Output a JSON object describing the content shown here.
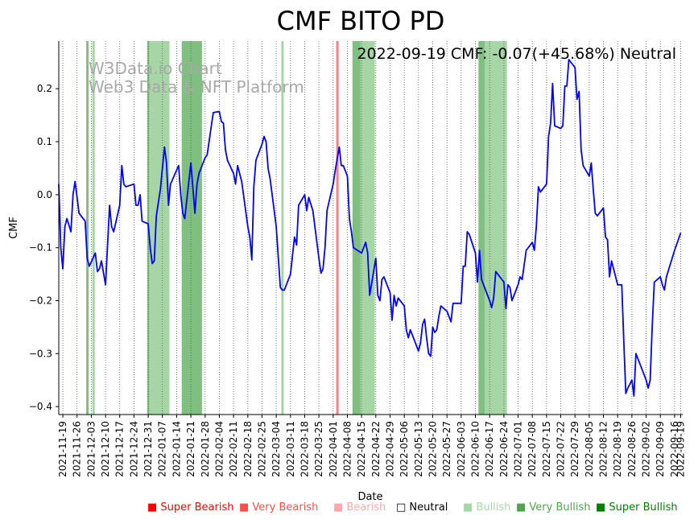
{
  "chart_data": {
    "type": "line",
    "title": "CMF BITO PD",
    "annotation": "2022-09-19 CMF: -0.07(+45.68%) Neutral",
    "watermark": [
      "W3Data.io Chart",
      "Web3 Data & NFT Platform"
    ],
    "xlabel": "Date",
    "ylabel": "CMF",
    "ylim": [
      -0.415,
      0.29
    ],
    "yticks": [
      0.2,
      0.1,
      0.0,
      -0.1,
      -0.2,
      -0.3,
      -0.4
    ],
    "ytick_labels": [
      "0.2",
      "0.1",
      "0.0",
      "−0.1",
      "−0.2",
      "−0.3",
      "−0.4"
    ],
    "x_start": "2021-11-17",
    "x_end": "2022-09-20",
    "xticks": [
      "2021-11-19",
      "2021-11-26",
      "2021-12-03",
      "2021-12-10",
      "2021-12-17",
      "2021-12-24",
      "2021-12-31",
      "2022-01-07",
      "2022-01-14",
      "2022-01-21",
      "2022-01-28",
      "2022-02-04",
      "2022-02-11",
      "2022-02-18",
      "2022-02-25",
      "2022-03-04",
      "2022-03-11",
      "2022-03-18",
      "2022-03-25",
      "2022-04-01",
      "2022-04-08",
      "2022-04-15",
      "2022-04-22",
      "2022-04-29",
      "2022-05-06",
      "2022-05-13",
      "2022-05-20",
      "2022-05-27",
      "2022-06-03",
      "2022-06-10",
      "2022-06-17",
      "2022-06-24",
      "2022-07-01",
      "2022-07-08",
      "2022-07-15",
      "2022-07-22",
      "2022-07-29",
      "2022-08-05",
      "2022-08-12",
      "2022-08-19",
      "2022-08-26",
      "2022-09-02",
      "2022-09-09",
      "2022-09-16",
      "2022-09-19"
    ],
    "series": [
      {
        "name": "CMF",
        "color": "#0000ff",
        "points": [
          [
            "2021-11-17",
            0.02
          ],
          [
            "2021-11-18",
            -0.1
          ],
          [
            "2021-11-19",
            -0.14
          ],
          [
            "2021-11-20",
            -0.06
          ],
          [
            "2021-11-21",
            -0.045
          ],
          [
            "2021-11-23",
            -0.07
          ],
          [
            "2021-11-24",
            0.0
          ],
          [
            "2021-11-25",
            0.025
          ],
          [
            "2021-11-27",
            -0.035
          ],
          [
            "2021-11-30",
            -0.05
          ],
          [
            "2021-12-01",
            -0.12
          ],
          [
            "2021-12-02",
            -0.135
          ],
          [
            "2021-12-05",
            -0.11
          ],
          [
            "2021-12-06",
            -0.145
          ],
          [
            "2021-12-07",
            -0.14
          ],
          [
            "2021-12-08",
            -0.125
          ],
          [
            "2021-12-10",
            -0.17
          ],
          [
            "2021-12-12",
            -0.02
          ],
          [
            "2021-12-13",
            -0.06
          ],
          [
            "2021-12-14",
            -0.07
          ],
          [
            "2021-12-17",
            -0.02
          ],
          [
            "2021-12-18",
            0.055
          ],
          [
            "2021-12-19",
            0.02
          ],
          [
            "2021-12-20",
            0.015
          ],
          [
            "2021-12-24",
            0.02
          ],
          [
            "2021-12-25",
            -0.02
          ],
          [
            "2021-12-26",
            -0.02
          ],
          [
            "2021-12-27",
            0.0
          ],
          [
            "2021-12-28",
            -0.05
          ],
          [
            "2021-12-31",
            -0.055
          ],
          [
            "2022-01-01",
            -0.1
          ],
          [
            "2022-01-02",
            -0.13
          ],
          [
            "2022-01-03",
            -0.125
          ],
          [
            "2022-01-04",
            -0.04
          ],
          [
            "2022-01-06",
            0.01
          ],
          [
            "2022-01-08",
            0.09
          ],
          [
            "2022-01-09",
            0.06
          ],
          [
            "2022-01-10",
            -0.02
          ],
          [
            "2022-01-11",
            0.02
          ],
          [
            "2022-01-15",
            0.055
          ],
          [
            "2022-01-16",
            0.0
          ],
          [
            "2022-01-17",
            -0.035
          ],
          [
            "2022-01-18",
            -0.045
          ],
          [
            "2022-01-21",
            0.06
          ],
          [
            "2022-01-23",
            -0.035
          ],
          [
            "2022-01-24",
            0.02
          ],
          [
            "2022-01-25",
            0.04
          ],
          [
            "2022-01-28",
            0.07
          ],
          [
            "2022-01-29",
            0.075
          ],
          [
            "2022-02-01",
            0.155
          ],
          [
            "2022-02-04",
            0.157
          ],
          [
            "2022-02-05",
            0.138
          ],
          [
            "2022-02-06",
            0.135
          ],
          [
            "2022-02-07",
            0.085
          ],
          [
            "2022-02-08",
            0.065
          ],
          [
            "2022-02-11",
            0.04
          ],
          [
            "2022-02-12",
            0.02
          ],
          [
            "2022-02-13",
            0.055
          ],
          [
            "2022-02-15",
            0.025
          ],
          [
            "2022-02-18",
            -0.06
          ],
          [
            "2022-02-19",
            -0.08
          ],
          [
            "2022-02-20",
            -0.123
          ],
          [
            "2022-02-21",
            0.015
          ],
          [
            "2022-02-22",
            0.065
          ],
          [
            "2022-02-25",
            0.095
          ],
          [
            "2022-02-26",
            0.11
          ],
          [
            "2022-02-27",
            0.1
          ],
          [
            "2022-02-28",
            0.05
          ],
          [
            "2022-03-01",
            0.03
          ],
          [
            "2022-03-04",
            -0.06
          ],
          [
            "2022-03-06",
            -0.175
          ],
          [
            "2022-03-07",
            -0.18
          ],
          [
            "2022-03-08",
            -0.18
          ],
          [
            "2022-03-11",
            -0.15
          ],
          [
            "2022-03-13",
            -0.08
          ],
          [
            "2022-03-14",
            -0.095
          ],
          [
            "2022-03-15",
            -0.02
          ],
          [
            "2022-03-18",
            0.0
          ],
          [
            "2022-03-19",
            -0.03
          ],
          [
            "2022-03-20",
            -0.005
          ],
          [
            "2022-03-22",
            -0.03
          ],
          [
            "2022-03-25",
            -0.12
          ],
          [
            "2022-03-26",
            -0.148
          ],
          [
            "2022-03-27",
            -0.14
          ],
          [
            "2022-03-28",
            -0.1
          ],
          [
            "2022-03-29",
            -0.03
          ],
          [
            "2022-04-01",
            0.02
          ],
          [
            "2022-04-02",
            0.045
          ],
          [
            "2022-04-04",
            0.09
          ],
          [
            "2022-04-05",
            0.055
          ],
          [
            "2022-04-06",
            0.055
          ],
          [
            "2022-04-08",
            0.035
          ],
          [
            "2022-04-09",
            -0.045
          ],
          [
            "2022-04-10",
            -0.07
          ],
          [
            "2022-04-11",
            -0.1
          ],
          [
            "2022-04-15",
            -0.11
          ],
          [
            "2022-04-16",
            -0.1
          ],
          [
            "2022-04-17",
            -0.09
          ],
          [
            "2022-04-18",
            -0.11
          ],
          [
            "2022-04-19",
            -0.19
          ],
          [
            "2022-04-22",
            -0.12
          ],
          [
            "2022-04-23",
            -0.19
          ],
          [
            "2022-04-24",
            -0.2
          ],
          [
            "2022-04-25",
            -0.16
          ],
          [
            "2022-04-26",
            -0.155
          ],
          [
            "2022-04-29",
            -0.185
          ],
          [
            "2022-04-30",
            -0.237
          ],
          [
            "2022-05-01",
            -0.19
          ],
          [
            "2022-05-02",
            -0.21
          ],
          [
            "2022-05-03",
            -0.195
          ],
          [
            "2022-05-06",
            -0.21
          ],
          [
            "2022-05-07",
            -0.255
          ],
          [
            "2022-05-08",
            -0.27
          ],
          [
            "2022-05-09",
            -0.255
          ],
          [
            "2022-05-13",
            -0.295
          ],
          [
            "2022-05-14",
            -0.28
          ],
          [
            "2022-05-15",
            -0.245
          ],
          [
            "2022-05-16",
            -0.235
          ],
          [
            "2022-05-17",
            -0.27
          ],
          [
            "2022-05-18",
            -0.3
          ],
          [
            "2022-05-19",
            -0.305
          ],
          [
            "2022-05-20",
            -0.25
          ],
          [
            "2022-05-21",
            -0.26
          ],
          [
            "2022-05-22",
            -0.255
          ],
          [
            "2022-05-23",
            -0.23
          ],
          [
            "2022-05-24",
            -0.21
          ],
          [
            "2022-05-27",
            -0.22
          ],
          [
            "2022-05-29",
            -0.24
          ],
          [
            "2022-05-30",
            -0.205
          ],
          [
            "2022-06-03",
            -0.205
          ],
          [
            "2022-06-04",
            -0.135
          ],
          [
            "2022-06-05",
            -0.135
          ],
          [
            "2022-06-06",
            -0.07
          ],
          [
            "2022-06-07",
            -0.075
          ],
          [
            "2022-06-10",
            -0.11
          ],
          [
            "2022-06-11",
            -0.165
          ],
          [
            "2022-06-12",
            -0.105
          ],
          [
            "2022-06-13",
            -0.16
          ],
          [
            "2022-06-17",
            -0.2
          ],
          [
            "2022-06-18",
            -0.213
          ],
          [
            "2022-06-19",
            -0.195
          ],
          [
            "2022-06-20",
            -0.145
          ],
          [
            "2022-06-24",
            -0.165
          ],
          [
            "2022-06-25",
            -0.215
          ],
          [
            "2022-06-26",
            -0.17
          ],
          [
            "2022-06-27",
            -0.175
          ],
          [
            "2022-06-28",
            -0.2
          ],
          [
            "2022-07-01",
            -0.17
          ],
          [
            "2022-07-02",
            -0.155
          ],
          [
            "2022-07-03",
            -0.16
          ],
          [
            "2022-07-05",
            -0.105
          ],
          [
            "2022-07-08",
            -0.09
          ],
          [
            "2022-07-09",
            -0.105
          ],
          [
            "2022-07-10",
            -0.06
          ],
          [
            "2022-07-11",
            0.015
          ],
          [
            "2022-07-12",
            0.005
          ],
          [
            "2022-07-15",
            0.02
          ],
          [
            "2022-07-16",
            0.11
          ],
          [
            "2022-07-17",
            0.135
          ],
          [
            "2022-07-18",
            0.21
          ],
          [
            "2022-07-19",
            0.13
          ],
          [
            "2022-07-22",
            0.125
          ],
          [
            "2022-07-23",
            0.13
          ],
          [
            "2022-07-24",
            0.205
          ],
          [
            "2022-07-25",
            0.205
          ],
          [
            "2022-07-26",
            0.255
          ],
          [
            "2022-07-29",
            0.24
          ],
          [
            "2022-07-30",
            0.18
          ],
          [
            "2022-07-31",
            0.195
          ],
          [
            "2022-08-01",
            0.085
          ],
          [
            "2022-08-02",
            0.055
          ],
          [
            "2022-08-05",
            0.035
          ],
          [
            "2022-08-06",
            0.06
          ],
          [
            "2022-08-07",
            0.01
          ],
          [
            "2022-08-08",
            -0.035
          ],
          [
            "2022-08-09",
            -0.04
          ],
          [
            "2022-08-12",
            -0.025
          ],
          [
            "2022-08-13",
            -0.08
          ],
          [
            "2022-08-14",
            -0.085
          ],
          [
            "2022-08-15",
            -0.155
          ],
          [
            "2022-08-16",
            -0.125
          ],
          [
            "2022-08-19",
            -0.17
          ],
          [
            "2022-08-21",
            -0.17
          ],
          [
            "2022-08-22",
            -0.275
          ],
          [
            "2022-08-23",
            -0.375
          ],
          [
            "2022-08-24",
            -0.365
          ],
          [
            "2022-08-26",
            -0.35
          ],
          [
            "2022-08-27",
            -0.38
          ],
          [
            "2022-08-28",
            -0.3
          ],
          [
            "2022-08-29",
            -0.31
          ],
          [
            "2022-09-02",
            -0.35
          ],
          [
            "2022-09-03",
            -0.365
          ],
          [
            "2022-09-04",
            -0.35
          ],
          [
            "2022-09-05",
            -0.25
          ],
          [
            "2022-09-06",
            -0.165
          ],
          [
            "2022-09-09",
            -0.155
          ],
          [
            "2022-09-10",
            -0.17
          ],
          [
            "2022-09-11",
            -0.18
          ],
          [
            "2022-09-12",
            -0.155
          ],
          [
            "2022-09-16",
            -0.105
          ],
          [
            "2022-09-19",
            -0.072
          ]
        ]
      }
    ],
    "signal_bands": [
      {
        "start": "2021-12-01",
        "end": "2021-12-01",
        "level": "Very Bullish"
      },
      {
        "start": "2021-12-04",
        "end": "2021-12-04",
        "level": "Bullish"
      },
      {
        "start": "2021-12-31",
        "end": "2022-01-01",
        "level": "Very Bullish"
      },
      {
        "start": "2022-01-01",
        "end": "2022-01-10",
        "level": "Bullish"
      },
      {
        "start": "2022-01-17",
        "end": "2022-01-26",
        "level": "Very Bullish"
      },
      {
        "start": "2022-03-07",
        "end": "2022-03-07",
        "level": "Bullish"
      },
      {
        "start": "2022-04-03",
        "end": "2022-04-03",
        "level": "Super Bearish"
      },
      {
        "start": "2022-04-11",
        "end": "2022-04-14",
        "level": "Very Bullish"
      },
      {
        "start": "2022-04-15",
        "end": "2022-04-21",
        "level": "Bullish"
      },
      {
        "start": "2022-06-12",
        "end": "2022-06-15",
        "level": "Very Bullish"
      },
      {
        "start": "2022-06-15",
        "end": "2022-06-25",
        "level": "Bullish"
      }
    ],
    "legend": [
      {
        "label": "Super Bearish",
        "color": "#ff0000"
      },
      {
        "label": "Very Bearish",
        "color": "#ff4c4c"
      },
      {
        "label": "Bearish",
        "color": "#ffa8a8"
      },
      {
        "label": "Neutral",
        "color": "#000000"
      },
      {
        "label": "Bullish",
        "color": "#a6d7a6"
      },
      {
        "label": "Very Bullish",
        "color": "#4da64d"
      },
      {
        "label": "Super Bullish",
        "color": "#008000"
      }
    ],
    "band_colors": {
      "Super Bearish": "#ff7f7f",
      "Very Bullish": "#7fbf7f",
      "Bullish": "#a6d5a6"
    },
    "legend_marker": "■",
    "legend_marker_neutral": "□"
  }
}
